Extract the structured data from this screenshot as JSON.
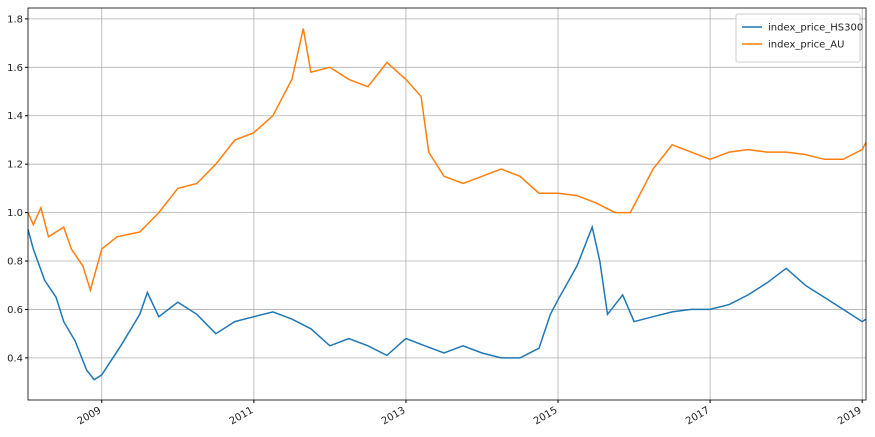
{
  "chart_data": {
    "type": "line",
    "xlim": [
      2008.03,
      2019.05
    ],
    "xticks": [
      2009,
      2011,
      2013,
      2015,
      2017,
      2019
    ],
    "ylim": [
      0.226,
      1.845
    ],
    "yticks": [
      0.4,
      0.6,
      0.8,
      {
        "value": 1,
        "label": "1.0"
      },
      1.2,
      1.4,
      1.6,
      1.8
    ],
    "grid": true,
    "legend": "upper right",
    "series": [
      {
        "name": "index_price_HS300",
        "color": "#1f77b4",
        "x": [
          2008.03,
          2008.1,
          2008.25,
          2008.4,
          2008.5,
          2008.65,
          2008.8,
          2008.9,
          2009.0,
          2009.25,
          2009.5,
          2009.6,
          2009.75,
          2010.0,
          2010.25,
          2010.5,
          2010.75,
          2011.0,
          2011.25,
          2011.5,
          2011.75,
          2012.0,
          2012.25,
          2012.5,
          2012.75,
          2013.0,
          2013.25,
          2013.5,
          2013.75,
          2014.0,
          2014.25,
          2014.5,
          2014.75,
          2014.9,
          2015.0,
          2015.25,
          2015.45,
          2015.55,
          2015.65,
          2015.85,
          2016.0,
          2016.25,
          2016.5,
          2016.75,
          2017.0,
          2017.25,
          2017.5,
          2017.75,
          2018.0,
          2018.25,
          2018.5,
          2018.75,
          2019.0,
          2019.05
        ],
        "values": [
          0.93,
          0.85,
          0.72,
          0.65,
          0.55,
          0.47,
          0.35,
          0.31,
          0.33,
          0.45,
          0.58,
          0.67,
          0.57,
          0.63,
          0.58,
          0.5,
          0.55,
          0.57,
          0.59,
          0.56,
          0.52,
          0.45,
          0.48,
          0.45,
          0.41,
          0.48,
          0.45,
          0.42,
          0.45,
          0.42,
          0.4,
          0.4,
          0.44,
          0.58,
          0.64,
          0.78,
          0.94,
          0.8,
          0.58,
          0.66,
          0.55,
          0.57,
          0.59,
          0.6,
          0.6,
          0.62,
          0.66,
          0.71,
          0.77,
          0.7,
          0.65,
          0.6,
          0.55,
          0.56
        ]
      },
      {
        "name": "index_price_AU",
        "color": "#ff7f0e",
        "x": [
          2008.03,
          2008.1,
          2008.2,
          2008.3,
          2008.5,
          2008.6,
          2008.75,
          2008.85,
          2009.0,
          2009.2,
          2009.5,
          2009.75,
          2010.0,
          2010.25,
          2010.5,
          2010.75,
          2011.0,
          2011.25,
          2011.5,
          2011.65,
          2011.75,
          2012.0,
          2012.25,
          2012.5,
          2012.75,
          2013.0,
          2013.2,
          2013.3,
          2013.5,
          2013.75,
          2014.0,
          2014.25,
          2014.5,
          2014.75,
          2015.0,
          2015.25,
          2015.5,
          2015.75,
          2015.95,
          2016.25,
          2016.5,
          2016.75,
          2017.0,
          2017.25,
          2017.5,
          2017.75,
          2018.0,
          2018.25,
          2018.5,
          2018.75,
          2019.0,
          2019.05
        ],
        "values": [
          1.0,
          0.95,
          1.02,
          0.9,
          0.94,
          0.85,
          0.78,
          0.68,
          0.85,
          0.9,
          0.92,
          1.0,
          1.1,
          1.12,
          1.2,
          1.3,
          1.33,
          1.4,
          1.55,
          1.76,
          1.58,
          1.6,
          1.55,
          1.52,
          1.62,
          1.55,
          1.48,
          1.25,
          1.15,
          1.12,
          1.15,
          1.18,
          1.15,
          1.08,
          1.08,
          1.07,
          1.04,
          1.0,
          1.0,
          1.18,
          1.28,
          1.25,
          1.22,
          1.25,
          1.26,
          1.25,
          1.25,
          1.24,
          1.22,
          1.22,
          1.26,
          1.29
        ]
      }
    ]
  }
}
